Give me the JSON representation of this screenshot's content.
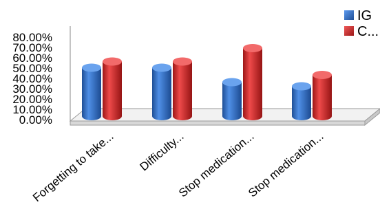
{
  "chart_data": {
    "type": "bar",
    "categories": [
      "Forgetting to take...",
      "Difficulty...",
      "Stop medication...",
      "Stop medication..."
    ],
    "series": [
      {
        "name": "IG",
        "values": [
          47,
          47,
          33,
          29
        ],
        "color": "#2e6fc9"
      },
      {
        "name": "C...",
        "values": [
          53,
          53,
          66,
          40
        ],
        "color": "#d42a2a"
      }
    ],
    "y_ticks": [
      "80.00%",
      "70.00%",
      "60.00%",
      "50.00%",
      "40.00%",
      "30.00%",
      "20.00%",
      "10.00%",
      "0.00%"
    ],
    "ylim": [
      0,
      80
    ],
    "grid": false,
    "legend_position": "top-right",
    "style": "3d-cylinder"
  }
}
